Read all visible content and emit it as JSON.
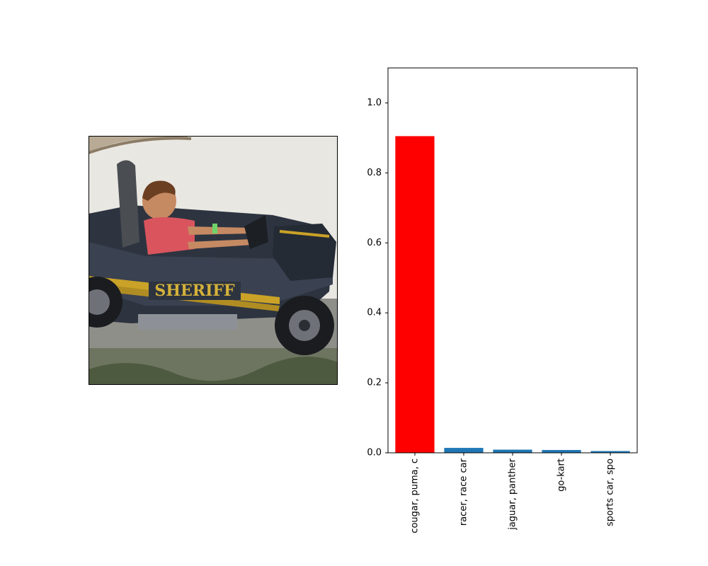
{
  "photo": {
    "subject": "boy driving sheriff go-kart",
    "car_text": "SHERIFF"
  },
  "chart_data": {
    "type": "bar",
    "categories": [
      "cougar, puma, c",
      "racer, race car",
      "jaguar, panther",
      "go-kart",
      "sports car, spo"
    ],
    "values": [
      0.905,
      0.014,
      0.009,
      0.008,
      0.005
    ],
    "bar_colors": [
      "#ff0000",
      "#1f77b4",
      "#1f77b4",
      "#1f77b4",
      "#1f77b4"
    ],
    "ylim": [
      0,
      1.1
    ],
    "yticks": [
      0.0,
      0.2,
      0.4,
      0.6,
      0.8,
      1.0
    ],
    "ytick_labels": [
      "0.0",
      "0.2",
      "0.4",
      "0.6",
      "0.8",
      "1.0"
    ],
    "title": "",
    "xlabel": "",
    "ylabel": "",
    "grid": false
  }
}
